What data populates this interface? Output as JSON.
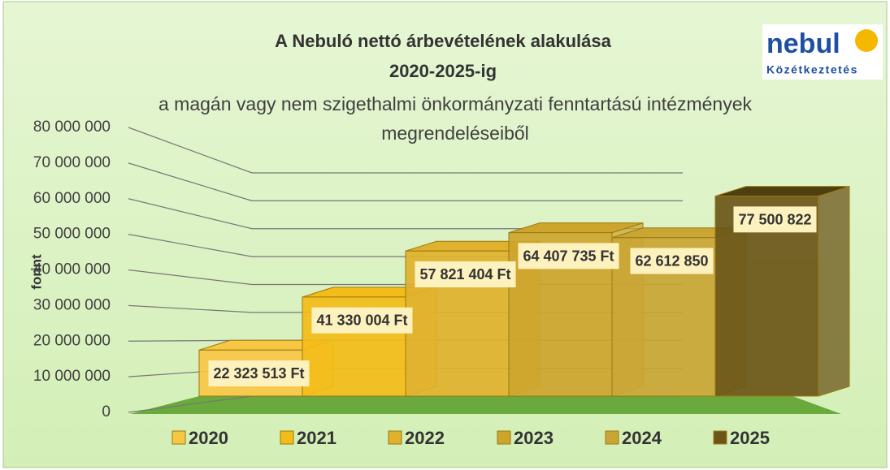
{
  "chart_data": {
    "type": "bar3d",
    "title": "A Nebuló nettó árbevételének alakulása",
    "title_line2": "2020-2025-ig",
    "subtitle": "a magán vagy nem szigethalmi önkormányzati fenntartású intézmények megrendeléseiből",
    "logo": {
      "name": "nebul",
      "tagline": "Közétkeztetés"
    },
    "y_label": "forint",
    "categories": [
      "2020",
      "2021",
      "2022",
      "2023",
      "2024",
      "2025"
    ],
    "values": [
      22323513,
      41330004,
      57821404,
      64407735,
      62612850,
      77500822
    ],
    "value_labels": [
      "22 323 513 Ft",
      "41 330 004 Ft",
      "57 821 404 Ft",
      "64 407 735 Ft",
      "62 612 850",
      "77 500 822"
    ],
    "colors": [
      "#f7c744",
      "#f3bc18",
      "#dfb12c",
      "#cda52c",
      "#c9a534",
      "#6b5618"
    ],
    "ylim": [
      0,
      80000000
    ],
    "yticks": [
      0,
      {
        "value": 10000000,
        "label": "10 000 000"
      },
      {
        "value": 20000000,
        "label": "20 000 000"
      },
      {
        "value": 30000000,
        "label": "30 000 000"
      },
      {
        "value": 40000000,
        "label": "40 000 000"
      },
      {
        "value": 50000000,
        "label": "50 000 000"
      },
      {
        "value": 60000000,
        "label": "60 000 000"
      },
      {
        "value": 70000000,
        "label": "70 000 000"
      },
      {
        "value": 80000000,
        "label": "80 000 000"
      }
    ],
    "grid": true,
    "legend": "bottom"
  }
}
